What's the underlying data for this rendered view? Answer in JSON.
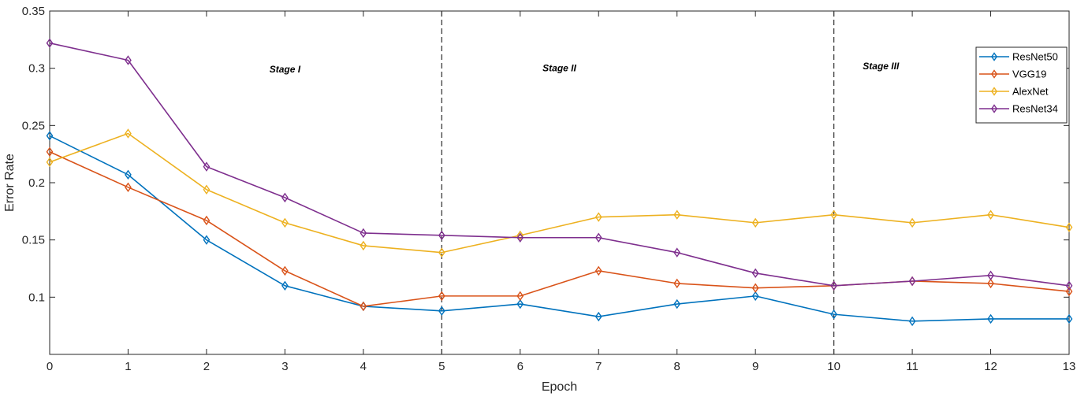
{
  "chart_data": {
    "type": "line",
    "xlabel": "Epoch",
    "ylabel": "Error Rate",
    "xlim": [
      0,
      13
    ],
    "ylim": [
      0.05,
      0.35
    ],
    "xticks": [
      "0",
      "1",
      "2",
      "3",
      "4",
      "5",
      "6",
      "7",
      "8",
      "9",
      "10",
      "11",
      "12",
      "13"
    ],
    "yticks": [
      "0.1",
      "0.15",
      "0.2",
      "0.25",
      "0.3",
      "0.35"
    ],
    "x": [
      0,
      1,
      2,
      3,
      4,
      5,
      6,
      7,
      8,
      9,
      10,
      11,
      12,
      13
    ],
    "grid": false,
    "legend_position": "top-right",
    "marker": "diamond",
    "series": [
      {
        "name": "ResNet50",
        "color": "#0072BD",
        "values": [
          0.241,
          0.207,
          0.15,
          0.11,
          0.092,
          0.088,
          0.094,
          0.083,
          0.094,
          0.101,
          0.085,
          0.079,
          0.081,
          0.081
        ]
      },
      {
        "name": "VGG19",
        "color": "#D95319",
        "values": [
          0.227,
          0.196,
          0.167,
          0.123,
          0.092,
          0.101,
          0.101,
          0.123,
          0.112,
          0.108,
          0.11,
          0.114,
          0.112,
          0.105
        ]
      },
      {
        "name": "AlexNet",
        "color": "#EDB120",
        "values": [
          0.218,
          0.243,
          0.194,
          0.165,
          0.145,
          0.139,
          0.154,
          0.17,
          0.172,
          0.165,
          0.172,
          0.165,
          0.172,
          0.161
        ]
      },
      {
        "name": "ResNet34",
        "color": "#7E2F8E",
        "values": [
          0.322,
          0.307,
          0.214,
          0.187,
          0.156,
          0.154,
          0.152,
          0.152,
          0.139,
          0.121,
          0.11,
          0.114,
          0.119,
          0.11
        ]
      }
    ],
    "vlines": [
      5,
      10
    ],
    "annotations": [
      {
        "text": "Stage I",
        "x": 3,
        "y": 0.299
      },
      {
        "text": "Stage II",
        "x": 6.5,
        "y": 0.3
      },
      {
        "text": "Stage III",
        "x": 10.6,
        "y": 0.302
      }
    ]
  }
}
